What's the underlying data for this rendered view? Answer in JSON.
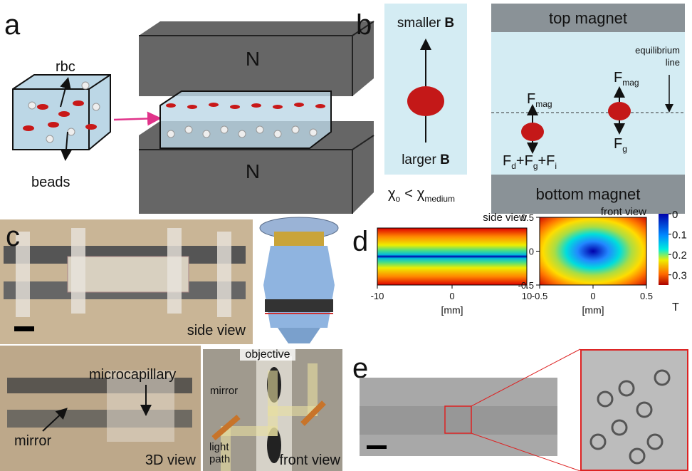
{
  "panel_a": {
    "label": "a",
    "rbc": "rbc",
    "beads": "beads",
    "north_top": "N",
    "north_bottom": "N"
  },
  "panel_b": {
    "label": "b",
    "smaller": {
      "text": "smaller",
      "bold": "B"
    },
    "larger": {
      "text": "larger",
      "bold": "B"
    },
    "chi": {
      "left": "χ",
      "left_sub": "o",
      "op": "<",
      "right": "χ",
      "right_sub": "medium"
    },
    "top_magnet": "top magnet",
    "bottom_magnet": "bottom magnet",
    "equilibrium": [
      "equilibrium",
      "line"
    ],
    "fmag_left": {
      "main": "F",
      "sub": "mag"
    },
    "fmag_right": {
      "main": "F",
      "sub": "mag"
    },
    "fsum": {
      "f1": "F",
      "s1": "d",
      "plus1": "+F",
      "s2": "g",
      "plus2": "+F",
      "s3": "i"
    },
    "fg": {
      "main": "F",
      "sub": "g"
    }
  },
  "panel_c": {
    "label": "c",
    "side_view": "side view",
    "microcapillary": "microcapillary",
    "mirror": "mirror",
    "view3d": "3D view",
    "objective": "objective",
    "mirror2": "mirror",
    "light_path": [
      "light",
      "path"
    ],
    "front_view": "front view"
  },
  "panel_d": {
    "label": "d",
    "side_title": "side view",
    "front_title": "front view",
    "side_xticks": [
      -10,
      0,
      10
    ],
    "side_xlim": [
      -10,
      10
    ],
    "x_unit": "[mm]",
    "front_xticks": [
      -0.5,
      0,
      0.5
    ],
    "front_lim": [
      -0.5,
      0.5
    ],
    "front_yticks": [
      0.5,
      0,
      -0.5
    ],
    "front_x_unit": "[mm]",
    "cbar_ticks": [
      0,
      0.1,
      0.2,
      0.3
    ],
    "cbar_lim": [
      0,
      0.35
    ],
    "cbar_unit": "T"
  },
  "panel_e": {
    "label": "e"
  }
}
